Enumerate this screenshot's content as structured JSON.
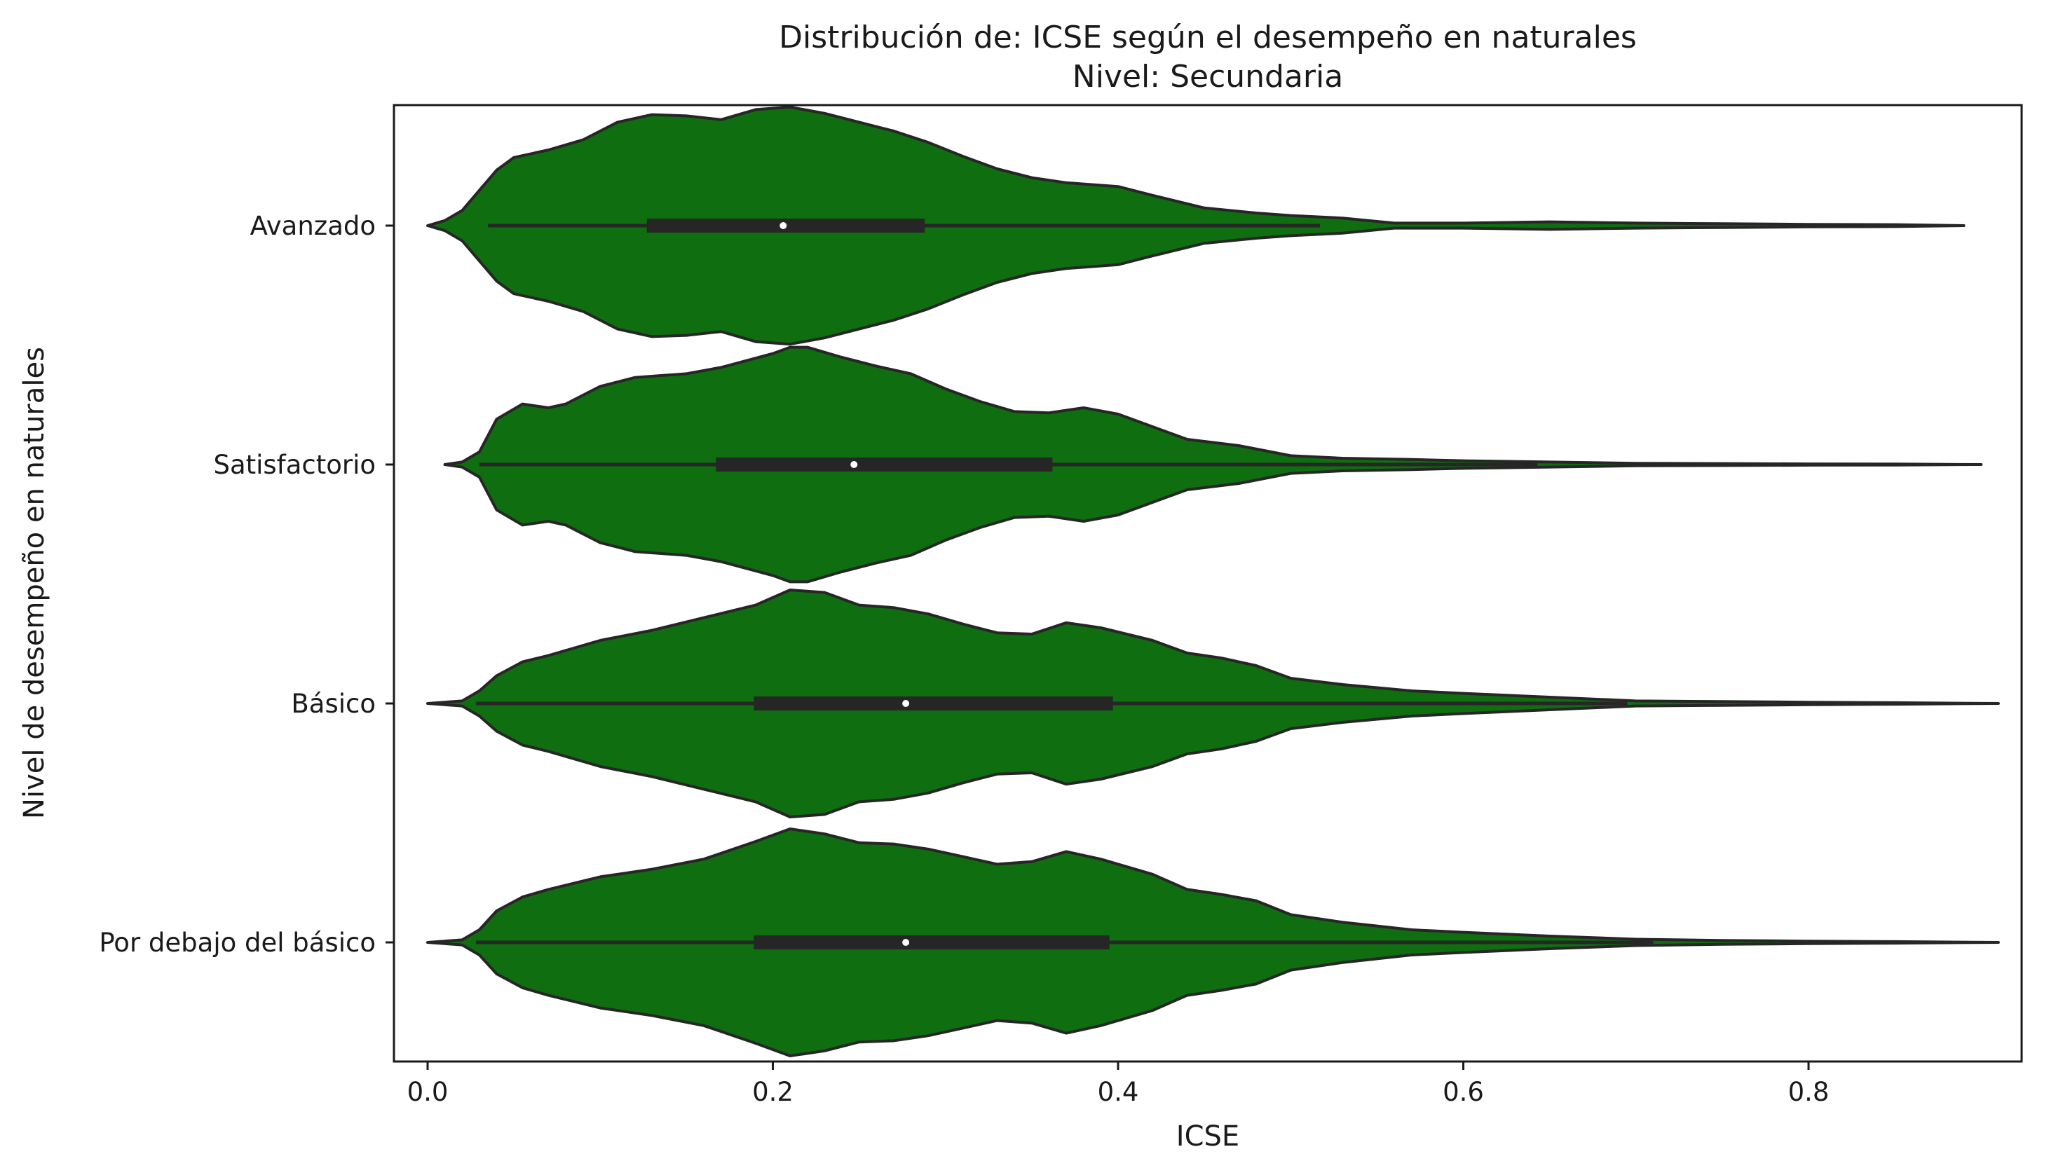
{
  "chart_data": {
    "type": "violin",
    "title": "Distribución de: ICSE según el desempeño en naturales",
    "subtitle": "Nivel: Secundaria",
    "xlabel": "ICSE",
    "ylabel": "Nivel de desempeño en naturales",
    "xlim": [
      -0.02,
      0.92
    ],
    "x_ticks": [
      "0.0",
      "0.2",
      "0.4",
      "0.6",
      "0.8"
    ],
    "grid": false,
    "fill_color": "#0f6e0f",
    "edge_color": "#262626",
    "categories": [
      "Avanzado",
      "Satisfactorio",
      "Básico",
      "Por debajo del básico"
    ],
    "violins": [
      {
        "category": "Avanzado",
        "min": 0.0,
        "max": 0.89,
        "whisker_low": 0.035,
        "whisker_high": 0.517,
        "q1": 0.127,
        "median": 0.206,
        "q3": 0.288,
        "density": [
          [
            0.0,
            0.0
          ],
          [
            0.01,
            0.04
          ],
          [
            0.02,
            0.12
          ],
          [
            0.03,
            0.28
          ],
          [
            0.04,
            0.44
          ],
          [
            0.05,
            0.54
          ],
          [
            0.07,
            0.6
          ],
          [
            0.09,
            0.68
          ],
          [
            0.11,
            0.82
          ],
          [
            0.13,
            0.88
          ],
          [
            0.15,
            0.87
          ],
          [
            0.17,
            0.84
          ],
          [
            0.19,
            0.92
          ],
          [
            0.21,
            0.94
          ],
          [
            0.23,
            0.89
          ],
          [
            0.25,
            0.82
          ],
          [
            0.27,
            0.75
          ],
          [
            0.29,
            0.66
          ],
          [
            0.31,
            0.55
          ],
          [
            0.33,
            0.45
          ],
          [
            0.35,
            0.38
          ],
          [
            0.37,
            0.34
          ],
          [
            0.4,
            0.31
          ],
          [
            0.42,
            0.24
          ],
          [
            0.45,
            0.14
          ],
          [
            0.48,
            0.1
          ],
          [
            0.5,
            0.08
          ],
          [
            0.53,
            0.06
          ],
          [
            0.56,
            0.02
          ],
          [
            0.6,
            0.02
          ],
          [
            0.65,
            0.03
          ],
          [
            0.7,
            0.02
          ],
          [
            0.75,
            0.015
          ],
          [
            0.8,
            0.01
          ],
          [
            0.85,
            0.008
          ],
          [
            0.89,
            0.0
          ]
        ]
      },
      {
        "category": "Satisfactorio",
        "min": 0.01,
        "max": 0.9,
        "whisker_low": 0.03,
        "whisker_high": 0.643,
        "q1": 0.167,
        "median": 0.247,
        "q3": 0.362,
        "density": [
          [
            0.01,
            0.0
          ],
          [
            0.02,
            0.02
          ],
          [
            0.03,
            0.1
          ],
          [
            0.04,
            0.36
          ],
          [
            0.055,
            0.48
          ],
          [
            0.07,
            0.45
          ],
          [
            0.08,
            0.48
          ],
          [
            0.1,
            0.62
          ],
          [
            0.12,
            0.69
          ],
          [
            0.15,
            0.72
          ],
          [
            0.17,
            0.77
          ],
          [
            0.2,
            0.88
          ],
          [
            0.21,
            0.93
          ],
          [
            0.22,
            0.93
          ],
          [
            0.24,
            0.85
          ],
          [
            0.26,
            0.78
          ],
          [
            0.28,
            0.72
          ],
          [
            0.3,
            0.6
          ],
          [
            0.32,
            0.5
          ],
          [
            0.34,
            0.42
          ],
          [
            0.36,
            0.41
          ],
          [
            0.38,
            0.45
          ],
          [
            0.4,
            0.4
          ],
          [
            0.42,
            0.3
          ],
          [
            0.44,
            0.2
          ],
          [
            0.47,
            0.15
          ],
          [
            0.5,
            0.07
          ],
          [
            0.53,
            0.05
          ],
          [
            0.57,
            0.04
          ],
          [
            0.6,
            0.03
          ],
          [
            0.65,
            0.02
          ],
          [
            0.7,
            0.01
          ],
          [
            0.75,
            0.008
          ],
          [
            0.8,
            0.005
          ],
          [
            0.85,
            0.004
          ],
          [
            0.9,
            0.0
          ]
        ]
      },
      {
        "category": "Básico",
        "min": 0.0,
        "max": 0.91,
        "whisker_low": 0.028,
        "whisker_high": 0.695,
        "q1": 0.189,
        "median": 0.277,
        "q3": 0.397,
        "density": [
          [
            0.0,
            0.0
          ],
          [
            0.02,
            0.02
          ],
          [
            0.03,
            0.1
          ],
          [
            0.04,
            0.22
          ],
          [
            0.055,
            0.33
          ],
          [
            0.07,
            0.38
          ],
          [
            0.1,
            0.5
          ],
          [
            0.13,
            0.58
          ],
          [
            0.16,
            0.68
          ],
          [
            0.19,
            0.78
          ],
          [
            0.21,
            0.9
          ],
          [
            0.23,
            0.88
          ],
          [
            0.25,
            0.78
          ],
          [
            0.27,
            0.76
          ],
          [
            0.29,
            0.71
          ],
          [
            0.31,
            0.63
          ],
          [
            0.33,
            0.56
          ],
          [
            0.35,
            0.55
          ],
          [
            0.37,
            0.64
          ],
          [
            0.39,
            0.6
          ],
          [
            0.42,
            0.5
          ],
          [
            0.44,
            0.4
          ],
          [
            0.46,
            0.36
          ],
          [
            0.48,
            0.3
          ],
          [
            0.5,
            0.2
          ],
          [
            0.53,
            0.15
          ],
          [
            0.57,
            0.1
          ],
          [
            0.6,
            0.08
          ],
          [
            0.65,
            0.05
          ],
          [
            0.7,
            0.02
          ],
          [
            0.75,
            0.015
          ],
          [
            0.8,
            0.01
          ],
          [
            0.85,
            0.006
          ],
          [
            0.91,
            0.0
          ]
        ]
      },
      {
        "category": "Por debajo del básico",
        "min": 0.0,
        "max": 0.91,
        "whisker_low": 0.028,
        "whisker_high": 0.71,
        "q1": 0.189,
        "median": 0.277,
        "q3": 0.395,
        "density": [
          [
            0.0,
            0.0
          ],
          [
            0.02,
            0.02
          ],
          [
            0.03,
            0.1
          ],
          [
            0.04,
            0.25
          ],
          [
            0.055,
            0.36
          ],
          [
            0.07,
            0.42
          ],
          [
            0.1,
            0.52
          ],
          [
            0.13,
            0.58
          ],
          [
            0.16,
            0.66
          ],
          [
            0.19,
            0.8
          ],
          [
            0.21,
            0.9
          ],
          [
            0.23,
            0.86
          ],
          [
            0.25,
            0.79
          ],
          [
            0.27,
            0.78
          ],
          [
            0.29,
            0.74
          ],
          [
            0.31,
            0.68
          ],
          [
            0.33,
            0.62
          ],
          [
            0.35,
            0.64
          ],
          [
            0.37,
            0.72
          ],
          [
            0.39,
            0.66
          ],
          [
            0.42,
            0.54
          ],
          [
            0.44,
            0.42
          ],
          [
            0.46,
            0.38
          ],
          [
            0.48,
            0.33
          ],
          [
            0.5,
            0.22
          ],
          [
            0.53,
            0.16
          ],
          [
            0.57,
            0.1
          ],
          [
            0.6,
            0.08
          ],
          [
            0.65,
            0.05
          ],
          [
            0.7,
            0.025
          ],
          [
            0.75,
            0.015
          ],
          [
            0.8,
            0.01
          ],
          [
            0.85,
            0.006
          ],
          [
            0.91,
            0.0
          ]
        ]
      }
    ]
  }
}
